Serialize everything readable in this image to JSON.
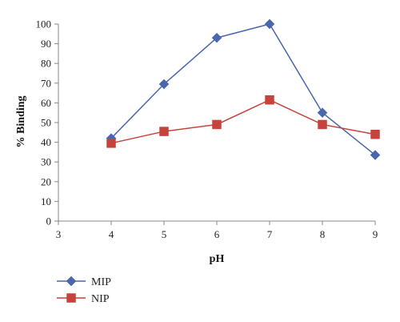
{
  "chart_data": {
    "type": "line",
    "title": "",
    "xlabel": "pH",
    "ylabel": "% Binding",
    "xlim": [
      3,
      9
    ],
    "ylim": [
      0,
      100
    ],
    "xticks": [
      "3",
      "4",
      "5",
      "6",
      "7",
      "8",
      "9"
    ],
    "yticks": [
      "0",
      "10",
      "20",
      "30",
      "40",
      "50",
      "60",
      "70",
      "80",
      "90",
      "100"
    ],
    "grid": false,
    "legend_position": "bottom-left",
    "series": [
      {
        "name": "MIP",
        "marker": "diamond",
        "color": "#4a66ad",
        "x": [
          4,
          5,
          6,
          7,
          8,
          9
        ],
        "y": [
          42,
          69.5,
          93,
          100,
          55,
          33.5
        ]
      },
      {
        "name": "NIP",
        "marker": "square",
        "color": "#c8423c",
        "x": [
          4,
          5,
          6,
          7,
          8,
          9
        ],
        "y": [
          39.5,
          45.5,
          49,
          61.5,
          49,
          44
        ]
      }
    ]
  }
}
